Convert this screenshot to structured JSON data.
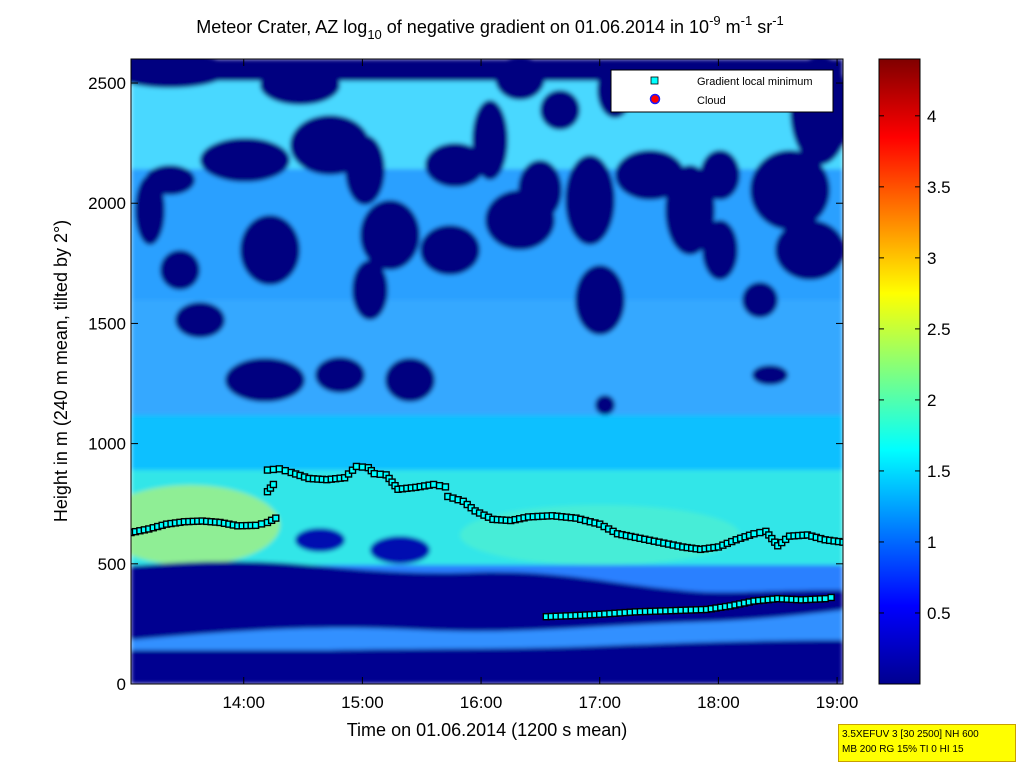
{
  "chart_data": {
    "type": "heatmap",
    "title": {
      "prefix": "Meteor Crater, AZ log",
      "sub10": "10",
      "middle": " of negative gradient on 01.06.2014 in 10",
      "exp_neg9": "-9",
      "unit_m": " m",
      "exp_neg1a": "-1",
      "unit_sr": " sr",
      "exp_neg1b": "-1"
    },
    "xlabel": "Time on 01.06.2014 (1200 s mean)",
    "ylabel": "Height in m (240 m mean, tilted by 2°)",
    "xlim": [
      13.05,
      19.05
    ],
    "ylim": [
      0,
      2600
    ],
    "x_unit": "hour of day",
    "x_ticks": [
      14,
      15,
      16,
      17,
      18,
      19
    ],
    "x_tick_labels": [
      "14:00",
      "15:00",
      "16:00",
      "17:00",
      "18:00",
      "19:00"
    ],
    "y_ticks": [
      0,
      500,
      1000,
      1500,
      2000,
      2500
    ],
    "y_tick_labels": [
      "0",
      "500",
      "1000",
      "1500",
      "2000",
      "2500"
    ],
    "colorbar": {
      "colormap": "jet",
      "range": [
        0,
        4.4
      ],
      "ticks": [
        0.5,
        1,
        1.5,
        2,
        2.5,
        3,
        3.5,
        4
      ],
      "tick_labels": [
        "0.5",
        "1",
        "1.5",
        "2",
        "2.5",
        "3",
        "3.5",
        "4"
      ]
    },
    "legend": {
      "placement": "top-right",
      "entries": [
        {
          "label": "Gradient local minimum",
          "marker": "square",
          "color": "#00ffff"
        },
        {
          "label": "Cloud",
          "marker": "circle",
          "color": "#ff0000"
        }
      ]
    },
    "series": [
      {
        "name": "Gradient local minimum",
        "marker": "square",
        "color": "#00ffff",
        "segments": [
          [
            [
              13.05,
              630
            ],
            [
              13.2,
              645
            ],
            [
              13.35,
              665
            ],
            [
              13.5,
              675
            ],
            [
              13.65,
              678
            ],
            [
              13.8,
              672
            ],
            [
              13.95,
              658
            ],
            [
              14.1,
              660
            ],
            [
              14.2,
              672
            ],
            [
              14.27,
              690
            ]
          ],
          [
            [
              14.2,
              800
            ],
            [
              14.25,
              830
            ]
          ],
          [
            [
              14.2,
              890
            ],
            [
              14.3,
              895
            ],
            [
              14.4,
              880
            ],
            [
              14.55,
              855
            ],
            [
              14.7,
              850
            ],
            [
              14.85,
              858
            ],
            [
              14.95,
              905
            ],
            [
              15.05,
              900
            ],
            [
              15.1,
              875
            ],
            [
              15.2,
              870
            ],
            [
              15.3,
              810
            ],
            [
              15.45,
              818
            ],
            [
              15.6,
              830
            ],
            [
              15.7,
              820
            ]
          ],
          [
            [
              15.72,
              780
            ],
            [
              15.85,
              760
            ],
            [
              15.95,
              720
            ],
            [
              16.1,
              685
            ],
            [
              16.25,
              680
            ],
            [
              16.4,
              695
            ],
            [
              16.6,
              700
            ],
            [
              16.8,
              690
            ],
            [
              17.0,
              665
            ],
            [
              17.15,
              625
            ],
            [
              17.3,
              610
            ],
            [
              17.5,
              590
            ],
            [
              17.7,
              570
            ],
            [
              17.85,
              560
            ],
            [
              18.0,
              570
            ],
            [
              18.15,
              600
            ],
            [
              18.3,
              625
            ],
            [
              18.4,
              635
            ],
            [
              18.5,
              575
            ],
            [
              18.6,
              615
            ],
            [
              18.75,
              620
            ],
            [
              18.9,
              600
            ],
            [
              19.05,
              590
            ]
          ],
          [
            [
              16.55,
              280
            ],
            [
              16.8,
              285
            ],
            [
              17.0,
              290
            ],
            [
              17.3,
              300
            ],
            [
              17.6,
              305
            ],
            [
              17.9,
              310
            ],
            [
              18.1,
              325
            ],
            [
              18.3,
              345
            ],
            [
              18.5,
              355
            ],
            [
              18.7,
              350
            ],
            [
              18.9,
              355
            ],
            [
              18.95,
              360
            ]
          ]
        ]
      },
      {
        "name": "Cloud",
        "marker": "circle",
        "color": "#ff0000",
        "points": []
      }
    ]
  },
  "info_box": {
    "line1": "3.5XEFUV 3 [30 2500] NH 600",
    "line2": "MB 200 RG 15% TI 0 HI 15"
  }
}
